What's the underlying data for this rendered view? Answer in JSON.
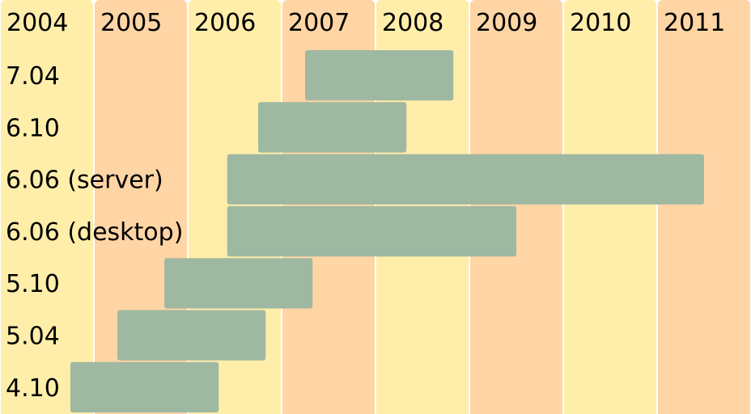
{
  "chart_data": {
    "type": "bar",
    "orientation": "horizontal-timeline",
    "title": "",
    "xlabel": "",
    "ylabel": "",
    "x_tick_labels": [
      "2004",
      "2005",
      "2006",
      "2007",
      "2008",
      "2009",
      "2010",
      "2011"
    ],
    "xlim": [
      2004.0,
      2012.0
    ],
    "grid": false,
    "colors": {
      "column_a": "#FFEEAA",
      "column_b": "#FFD5A5",
      "bar": "#9FB8A2"
    },
    "categories": [
      "7.04",
      "6.10",
      "6.06 (server)",
      "6.06 (desktop)",
      "5.10",
      "5.04",
      "4.10"
    ],
    "series": [
      {
        "start": [
          2007.25,
          2006.75,
          2006.42,
          2006.42,
          2005.75,
          2005.25,
          2004.75
        ],
        "end": [
          2008.83,
          2008.33,
          2011.5,
          2009.5,
          2007.33,
          2006.83,
          2006.33
        ]
      }
    ]
  }
}
